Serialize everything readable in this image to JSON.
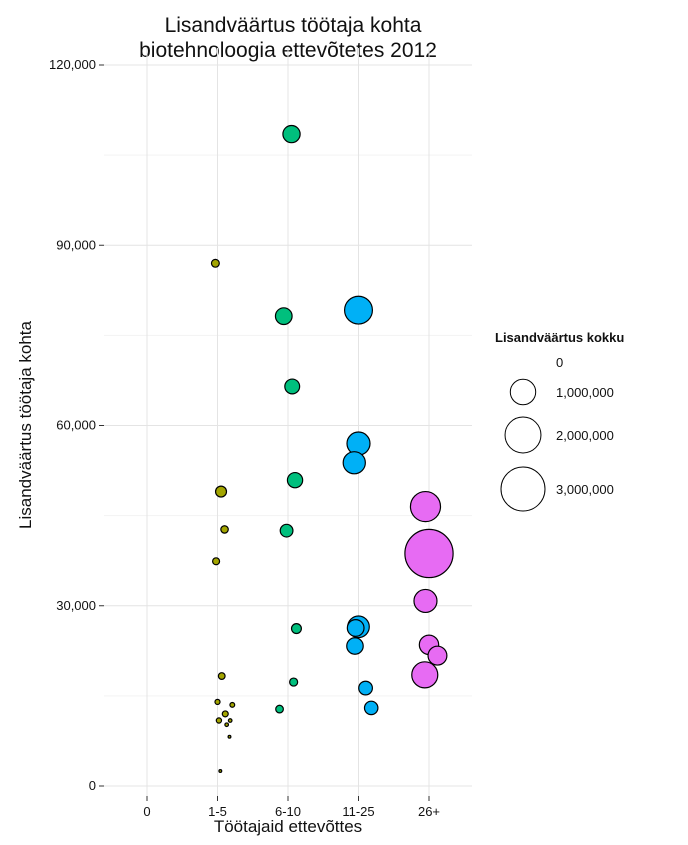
{
  "chart_data": {
    "type": "scatter",
    "title_line1": "Lisandväärtus töötaja kohta",
    "title_line2": "biotehnoloogia ettevõtetes 2012",
    "xlabel": "Töötajaid ettevõttes",
    "ylabel": "Lisandväärtus töötaja kohta",
    "categories": [
      "0",
      "1-5",
      "6-10",
      "11-25",
      "26+"
    ],
    "ylim": [
      0,
      120000
    ],
    "yticks": [
      0,
      30000,
      60000,
      90000,
      120000
    ],
    "ytick_labels": [
      "0",
      "30,000",
      "60,000",
      "90,000",
      "120,000"
    ],
    "grid": true,
    "legend": {
      "title": "Lisandväärtus kokku",
      "position": "right",
      "entries": [
        {
          "label": "0",
          "value": 0
        },
        {
          "label": "1,000,000",
          "value": 1000000
        },
        {
          "label": "2,000,000",
          "value": 2000000
        },
        {
          "label": "3,000,000",
          "value": 3000000
        }
      ]
    },
    "series": [
      {
        "category": "1-5",
        "color": "#a3a500",
        "points": [
          {
            "x": -0.03,
            "y": 87000,
            "size": 95000
          },
          {
            "x": 0.05,
            "y": 49000,
            "size": 185000
          },
          {
            "x": 0.1,
            "y": 42700,
            "size": 85000
          },
          {
            "x": -0.02,
            "y": 37400,
            "size": 75000
          },
          {
            "x": 0.06,
            "y": 18300,
            "size": 70000
          },
          {
            "x": 0.0,
            "y": 14000,
            "size": 40000
          },
          {
            "x": 0.21,
            "y": 13500,
            "size": 35000
          },
          {
            "x": 0.11,
            "y": 12000,
            "size": 55000
          },
          {
            "x": 0.02,
            "y": 10900,
            "size": 42000
          },
          {
            "x": 0.18,
            "y": 10900,
            "size": 20000
          },
          {
            "x": 0.13,
            "y": 10200,
            "size": 20000
          },
          {
            "x": 0.17,
            "y": 8200,
            "size": 12000
          },
          {
            "x": 0.04,
            "y": 2500,
            "size": 12000
          }
        ]
      },
      {
        "category": "6-10",
        "color": "#00bf7d",
        "points": [
          {
            "x": 0.05,
            "y": 108500,
            "size": 460000
          },
          {
            "x": -0.06,
            "y": 78200,
            "size": 430000
          },
          {
            "x": 0.06,
            "y": 66500,
            "size": 340000
          },
          {
            "x": 0.1,
            "y": 50900,
            "size": 360000
          },
          {
            "x": -0.02,
            "y": 42500,
            "size": 250000
          },
          {
            "x": 0.12,
            "y": 26200,
            "size": 150000
          },
          {
            "x": 0.08,
            "y": 17300,
            "size": 100000
          },
          {
            "x": -0.12,
            "y": 12800,
            "size": 90000
          }
        ]
      },
      {
        "category": "11-25",
        "color": "#00b0f6",
        "points": [
          {
            "x": 0.0,
            "y": 79200,
            "size": 1200000
          },
          {
            "x": 0.0,
            "y": 57000,
            "size": 820000
          },
          {
            "x": -0.06,
            "y": 53800,
            "size": 760000
          },
          {
            "x": 0.0,
            "y": 26500,
            "size": 720000
          },
          {
            "x": -0.04,
            "y": 26300,
            "size": 430000
          },
          {
            "x": -0.05,
            "y": 23300,
            "size": 420000
          },
          {
            "x": 0.1,
            "y": 16300,
            "size": 290000
          },
          {
            "x": 0.18,
            "y": 13000,
            "size": 280000
          }
        ]
      },
      {
        "category": "26+",
        "color": "#e76bf3",
        "points": [
          {
            "x": 0.0,
            "y": 38700,
            "size": 3600000
          },
          {
            "x": -0.05,
            "y": 46500,
            "size": 1400000
          },
          {
            "x": -0.05,
            "y": 30800,
            "size": 820000
          },
          {
            "x": 0.0,
            "y": 23500,
            "size": 580000
          },
          {
            "x": 0.12,
            "y": 21700,
            "size": 550000
          },
          {
            "x": -0.06,
            "y": 18500,
            "size": 1050000
          }
        ]
      }
    ]
  }
}
